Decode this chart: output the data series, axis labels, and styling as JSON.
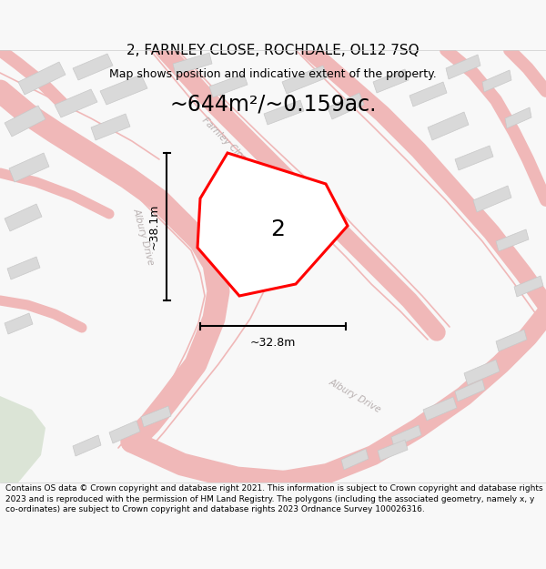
{
  "title": "2, FARNLEY CLOSE, ROCHDALE, OL12 7SQ",
  "subtitle": "Map shows position and indicative extent of the property.",
  "area_text": "~644m²/~0.159ac.",
  "dim_width": "~32.8m",
  "dim_height": "~38.1m",
  "plot_number": "2",
  "footer": "Contains OS data © Crown copyright and database right 2021. This information is subject to Crown copyright and database rights 2023 and is reproduced with the permission of HM Land Registry. The polygons (including the associated geometry, namely x, y co-ordinates) are subject to Crown copyright and database rights 2023 Ordnance Survey 100026316.",
  "bg_color": "#f8f8f8",
  "map_bg": "#f2f1f0",
  "plot_fill": "#ffffff",
  "plot_edge": "#ff0000",
  "road_color": "#f0b8b8",
  "road_fill": "#fafafa",
  "building_color": "#d9d9d9",
  "building_edge": "#c8c8c8",
  "title_color": "#000000",
  "text_color": "#000000",
  "dim_line_color": "#000000",
  "road_label_color": "#b8b0b0",
  "green_area": "#c8d8c0",
  "title_fontsize": 11,
  "subtitle_fontsize": 9,
  "area_fontsize": 17,
  "plot_label_fontsize": 18,
  "dim_fontsize": 9,
  "road_label_fontsize": 7.5,
  "footer_fontsize": 6.5
}
